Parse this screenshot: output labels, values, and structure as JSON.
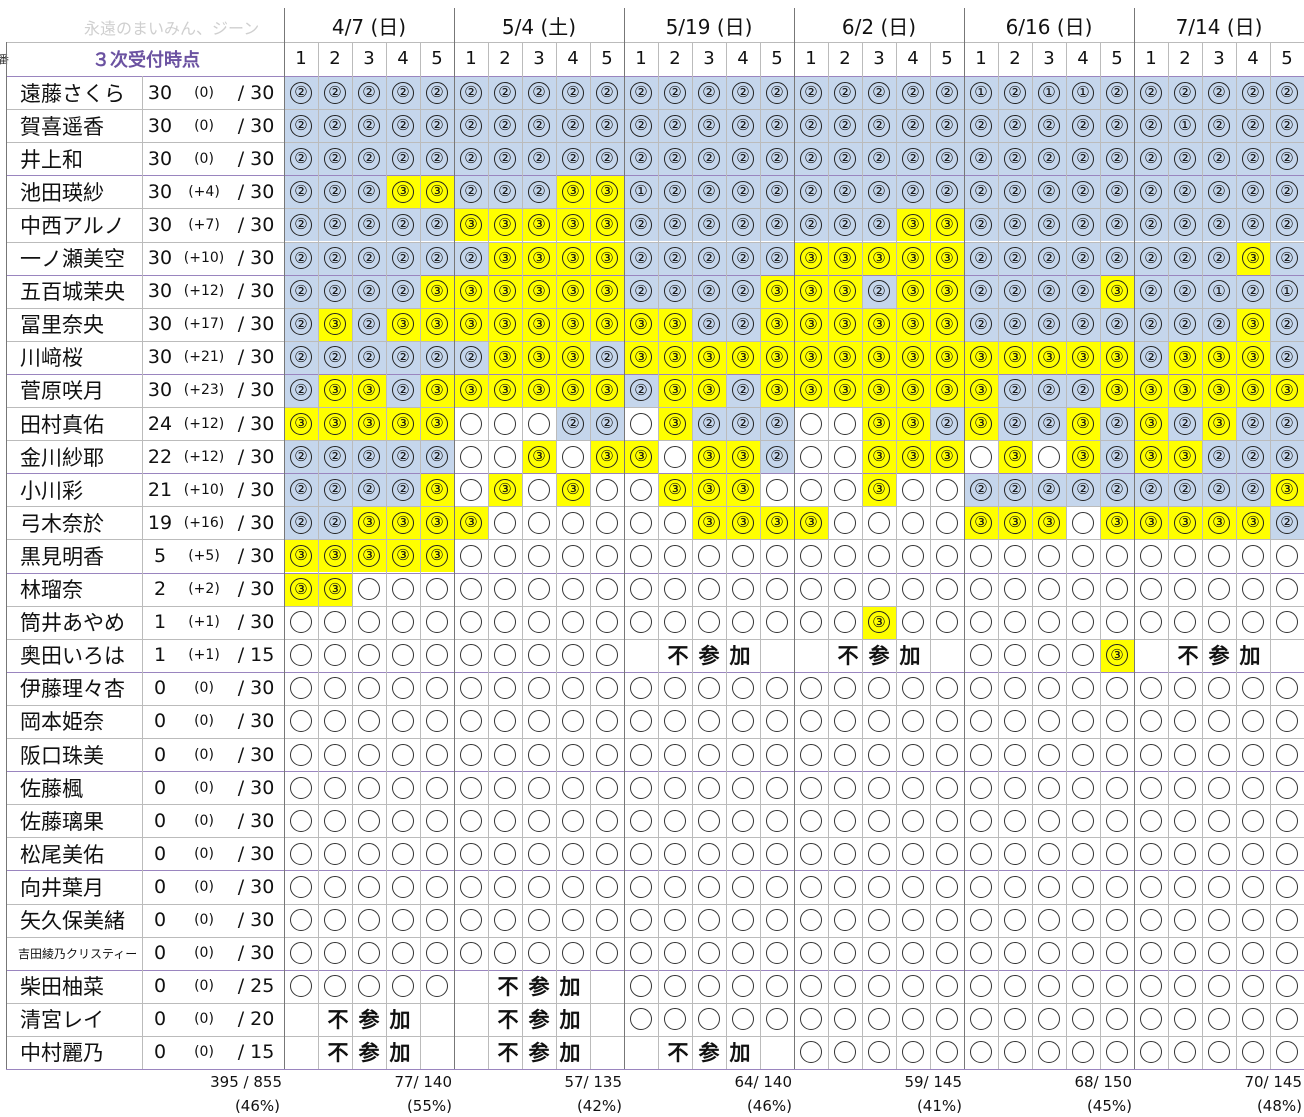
{
  "watermark": "永遠のまいみん、ジーン",
  "title": "３次受付時点",
  "edge_char": "番",
  "dates": [
    {
      "label": "4/7 (日)",
      "games": [
        "1",
        "2",
        "3",
        "4",
        "5"
      ]
    },
    {
      "label": "5/4 (土)",
      "games": [
        "1",
        "2",
        "3",
        "4",
        "5"
      ]
    },
    {
      "label": "5/19 (日)",
      "games": [
        "1",
        "2",
        "3",
        "4",
        "5"
      ]
    },
    {
      "label": "6/2 (日)",
      "games": [
        "1",
        "2",
        "3",
        "4",
        "5"
      ]
    },
    {
      "label": "6/16 (日)",
      "games": [
        "1",
        "2",
        "3",
        "4",
        "5"
      ]
    },
    {
      "label": "7/14 (日)",
      "games": [
        "1",
        "2",
        "3",
        "4",
        "5"
      ]
    }
  ],
  "absent_text": [
    "不",
    "参",
    "加"
  ],
  "legend_colors": {
    "mark_1_2": "#c5d6ec",
    "mark_3": "#ffff00",
    "header_accent": "#6b52a1"
  },
  "rows": [
    {
      "name": "遠藤さくら",
      "count": "30",
      "diff": "(0)",
      "cap": "/ 30",
      "marks": [
        "2",
        "2",
        "2",
        "2",
        "2",
        "2",
        "2",
        "2",
        "2",
        "2",
        "2",
        "2",
        "2",
        "2",
        "2",
        "2",
        "2",
        "2",
        "2",
        "2",
        "1",
        "2",
        "1",
        "1",
        "2",
        "2",
        "2",
        "2",
        "2",
        "2"
      ]
    },
    {
      "name": "賀喜遥香",
      "count": "30",
      "diff": "(0)",
      "cap": "/ 30",
      "marks": [
        "2",
        "2",
        "2",
        "2",
        "2",
        "2",
        "2",
        "2",
        "2",
        "2",
        "2",
        "2",
        "2",
        "2",
        "2",
        "2",
        "2",
        "2",
        "2",
        "2",
        "2",
        "2",
        "2",
        "2",
        "2",
        "2",
        "1",
        "2",
        "2",
        "2"
      ]
    },
    {
      "name": "井上和",
      "count": "30",
      "diff": "(0)",
      "cap": "/ 30",
      "marks": [
        "2",
        "2",
        "2",
        "2",
        "2",
        "2",
        "2",
        "2",
        "2",
        "2",
        "2",
        "2",
        "2",
        "2",
        "2",
        "2",
        "2",
        "2",
        "2",
        "2",
        "2",
        "2",
        "2",
        "2",
        "2",
        "2",
        "2",
        "2",
        "2",
        "2"
      ]
    },
    {
      "name": "池田瑛紗",
      "count": "30",
      "diff": "(+4)",
      "cap": "/ 30",
      "marks": [
        "2",
        "2",
        "2",
        "3",
        "3",
        "2",
        "2",
        "2",
        "3",
        "3",
        "1",
        "2",
        "2",
        "2",
        "2",
        "2",
        "2",
        "2",
        "2",
        "2",
        "2",
        "2",
        "2",
        "2",
        "2",
        "2",
        "2",
        "2",
        "2",
        "2"
      ]
    },
    {
      "name": "中西アルノ",
      "count": "30",
      "diff": "(+7)",
      "cap": "/ 30",
      "marks": [
        "2",
        "2",
        "2",
        "2",
        "2",
        "3",
        "3",
        "3",
        "3",
        "3",
        "2",
        "2",
        "2",
        "2",
        "2",
        "2",
        "2",
        "2",
        "3",
        "3",
        "2",
        "2",
        "2",
        "2",
        "2",
        "2",
        "2",
        "2",
        "2",
        "2"
      ]
    },
    {
      "name": "一ノ瀬美空",
      "count": "30",
      "diff": "(+10)",
      "cap": "/ 30",
      "marks": [
        "2",
        "2",
        "2",
        "2",
        "2",
        "2",
        "3",
        "3",
        "3",
        "3",
        "2",
        "2",
        "2",
        "2",
        "2",
        "3",
        "3",
        "3",
        "3",
        "3",
        "2",
        "2",
        "2",
        "2",
        "2",
        "2",
        "2",
        "2",
        "3",
        "2"
      ]
    },
    {
      "name": "五百城茉央",
      "count": "30",
      "diff": "(+12)",
      "cap": "/ 30",
      "marks": [
        "2",
        "2",
        "2",
        "2",
        "3",
        "3",
        "3",
        "3",
        "3",
        "3",
        "2",
        "2",
        "2",
        "2",
        "3",
        "3",
        "3",
        "2",
        "3",
        "3",
        "2",
        "2",
        "2",
        "2",
        "3",
        "2",
        "2",
        "1",
        "2",
        "1"
      ]
    },
    {
      "name": "冨里奈央",
      "count": "30",
      "diff": "(+17)",
      "cap": "/ 30",
      "marks": [
        "2",
        "3",
        "2",
        "3",
        "3",
        "3",
        "3",
        "3",
        "3",
        "3",
        "3",
        "3",
        "2",
        "2",
        "3",
        "3",
        "3",
        "3",
        "3",
        "3",
        "2",
        "2",
        "2",
        "2",
        "2",
        "2",
        "2",
        "2",
        "3",
        "2"
      ]
    },
    {
      "name": "川﨑桜",
      "count": "30",
      "diff": "(+21)",
      "cap": "/ 30",
      "marks": [
        "2",
        "2",
        "2",
        "2",
        "2",
        "2",
        "3",
        "3",
        "3",
        "2",
        "3",
        "3",
        "3",
        "3",
        "3",
        "3",
        "3",
        "3",
        "3",
        "3",
        "3",
        "3",
        "3",
        "3",
        "3",
        "2",
        "3",
        "3",
        "3",
        "2"
      ]
    },
    {
      "name": "菅原咲月",
      "count": "30",
      "diff": "(+23)",
      "cap": "/ 30",
      "marks": [
        "2",
        "3",
        "3",
        "2",
        "3",
        "3",
        "3",
        "3",
        "3",
        "3",
        "2",
        "3",
        "3",
        "2",
        "3",
        "3",
        "3",
        "3",
        "3",
        "3",
        "3",
        "2",
        "2",
        "2",
        "3",
        "3",
        "3",
        "3",
        "3",
        "3"
      ]
    },
    {
      "name": "田村真佑",
      "count": "24",
      "diff": "(+12)",
      "cap": "/ 30",
      "marks": [
        "3",
        "3",
        "3",
        "3",
        "3",
        "0",
        "0",
        "0",
        "2",
        "2",
        "0",
        "3",
        "2",
        "2",
        "2",
        "0",
        "0",
        "3",
        "3",
        "2",
        "3",
        "2",
        "2",
        "3",
        "2",
        "3",
        "2",
        "3",
        "2",
        "2"
      ]
    },
    {
      "name": "金川紗耶",
      "count": "22",
      "diff": "(+12)",
      "cap": "/ 30",
      "marks": [
        "2",
        "2",
        "2",
        "2",
        "2",
        "0",
        "0",
        "3",
        "0",
        "3",
        "3",
        "0",
        "3",
        "3",
        "2",
        "0",
        "0",
        "3",
        "3",
        "3",
        "0",
        "3",
        "0",
        "3",
        "2",
        "3",
        "3",
        "2",
        "2",
        "2"
      ]
    },
    {
      "name": "小川彩",
      "count": "21",
      "diff": "(+10)",
      "cap": "/ 30",
      "marks": [
        "2",
        "2",
        "2",
        "2",
        "3",
        "0",
        "3",
        "0",
        "3",
        "0",
        "0",
        "3",
        "3",
        "3",
        "0",
        "0",
        "0",
        "3",
        "0",
        "0",
        "2",
        "2",
        "2",
        "2",
        "2",
        "2",
        "2",
        "2",
        "2",
        "3"
      ]
    },
    {
      "name": "弓木奈於",
      "count": "19",
      "diff": "(+16)",
      "cap": "/ 30",
      "marks": [
        "2",
        "2",
        "3",
        "3",
        "3",
        "3",
        "0",
        "0",
        "0",
        "0",
        "0",
        "0",
        "3",
        "3",
        "3",
        "3",
        "0",
        "0",
        "0",
        "0",
        "3",
        "3",
        "3",
        "0",
        "3",
        "3",
        "3",
        "3",
        "3",
        "2"
      ]
    },
    {
      "name": "黒見明香",
      "count": "5",
      "diff": "(+5)",
      "cap": "/ 30",
      "marks": [
        "3",
        "3",
        "3",
        "3",
        "3",
        "0",
        "0",
        "0",
        "0",
        "0",
        "0",
        "0",
        "0",
        "0",
        "0",
        "0",
        "0",
        "0",
        "0",
        "0",
        "0",
        "0",
        "0",
        "0",
        "0",
        "0",
        "0",
        "0",
        "0",
        "0"
      ]
    },
    {
      "name": "林瑠奈",
      "count": "2",
      "diff": "(+2)",
      "cap": "/ 30",
      "marks": [
        "3",
        "3",
        "0",
        "0",
        "0",
        "0",
        "0",
        "0",
        "0",
        "0",
        "0",
        "0",
        "0",
        "0",
        "0",
        "0",
        "0",
        "0",
        "0",
        "0",
        "0",
        "0",
        "0",
        "0",
        "0",
        "0",
        "0",
        "0",
        "0",
        "0"
      ]
    },
    {
      "name": "筒井あやめ",
      "count": "1",
      "diff": "(+1)",
      "cap": "/ 30",
      "marks": [
        "0",
        "0",
        "0",
        "0",
        "0",
        "0",
        "0",
        "0",
        "0",
        "0",
        "0",
        "0",
        "0",
        "0",
        "0",
        "0",
        "0",
        "3",
        "0",
        "0",
        "0",
        "0",
        "0",
        "0",
        "0",
        "0",
        "0",
        "0",
        "0",
        "0"
      ]
    },
    {
      "name": "奥田いろは",
      "count": "1",
      "diff": "(+1)",
      "cap": "/ 15",
      "marks": [
        "0",
        "0",
        "0",
        "0",
        "0",
        "0",
        "0",
        "0",
        "0",
        "0",
        "X",
        "X",
        "X",
        "X",
        "X",
        "X",
        "X",
        "X",
        "X",
        "X",
        "0",
        "0",
        "0",
        "0",
        "3",
        "X",
        "X",
        "X",
        "X",
        "X"
      ]
    },
    {
      "name": "伊藤理々杏",
      "count": "0",
      "diff": "(0)",
      "cap": "/ 30",
      "marks": [
        "0",
        "0",
        "0",
        "0",
        "0",
        "0",
        "0",
        "0",
        "0",
        "0",
        "0",
        "0",
        "0",
        "0",
        "0",
        "0",
        "0",
        "0",
        "0",
        "0",
        "0",
        "0",
        "0",
        "0",
        "0",
        "0",
        "0",
        "0",
        "0",
        "0"
      ]
    },
    {
      "name": "岡本姫奈",
      "count": "0",
      "diff": "(0)",
      "cap": "/ 30",
      "marks": [
        "0",
        "0",
        "0",
        "0",
        "0",
        "0",
        "0",
        "0",
        "0",
        "0",
        "0",
        "0",
        "0",
        "0",
        "0",
        "0",
        "0",
        "0",
        "0",
        "0",
        "0",
        "0",
        "0",
        "0",
        "0",
        "0",
        "0",
        "0",
        "0",
        "0"
      ]
    },
    {
      "name": "阪口珠美",
      "count": "0",
      "diff": "(0)",
      "cap": "/ 30",
      "marks": [
        "0",
        "0",
        "0",
        "0",
        "0",
        "0",
        "0",
        "0",
        "0",
        "0",
        "0",
        "0",
        "0",
        "0",
        "0",
        "0",
        "0",
        "0",
        "0",
        "0",
        "0",
        "0",
        "0",
        "0",
        "0",
        "0",
        "0",
        "0",
        "0",
        "0"
      ]
    },
    {
      "name": "佐藤楓",
      "count": "0",
      "diff": "(0)",
      "cap": "/ 30",
      "marks": [
        "0",
        "0",
        "0",
        "0",
        "0",
        "0",
        "0",
        "0",
        "0",
        "0",
        "0",
        "0",
        "0",
        "0",
        "0",
        "0",
        "0",
        "0",
        "0",
        "0",
        "0",
        "0",
        "0",
        "0",
        "0",
        "0",
        "0",
        "0",
        "0",
        "0"
      ]
    },
    {
      "name": "佐藤璃果",
      "count": "0",
      "diff": "(0)",
      "cap": "/ 30",
      "marks": [
        "0",
        "0",
        "0",
        "0",
        "0",
        "0",
        "0",
        "0",
        "0",
        "0",
        "0",
        "0",
        "0",
        "0",
        "0",
        "0",
        "0",
        "0",
        "0",
        "0",
        "0",
        "0",
        "0",
        "0",
        "0",
        "0",
        "0",
        "0",
        "0",
        "0"
      ]
    },
    {
      "name": "松尾美佑",
      "count": "0",
      "diff": "(0)",
      "cap": "/ 30",
      "marks": [
        "0",
        "0",
        "0",
        "0",
        "0",
        "0",
        "0",
        "0",
        "0",
        "0",
        "0",
        "0",
        "0",
        "0",
        "0",
        "0",
        "0",
        "0",
        "0",
        "0",
        "0",
        "0",
        "0",
        "0",
        "0",
        "0",
        "0",
        "0",
        "0",
        "0"
      ]
    },
    {
      "name": "向井葉月",
      "count": "0",
      "diff": "(0)",
      "cap": "/ 30",
      "marks": [
        "0",
        "0",
        "0",
        "0",
        "0",
        "0",
        "0",
        "0",
        "0",
        "0",
        "0",
        "0",
        "0",
        "0",
        "0",
        "0",
        "0",
        "0",
        "0",
        "0",
        "0",
        "0",
        "0",
        "0",
        "0",
        "0",
        "0",
        "0",
        "0",
        "0"
      ]
    },
    {
      "name": "矢久保美緒",
      "count": "0",
      "diff": "(0)",
      "cap": "/ 30",
      "marks": [
        "0",
        "0",
        "0",
        "0",
        "0",
        "0",
        "0",
        "0",
        "0",
        "0",
        "0",
        "0",
        "0",
        "0",
        "0",
        "0",
        "0",
        "0",
        "0",
        "0",
        "0",
        "0",
        "0",
        "0",
        "0",
        "0",
        "0",
        "0",
        "0",
        "0"
      ]
    },
    {
      "name": "吉田綾乃クリスティー",
      "count": "0",
      "diff": "(0)",
      "cap": "/ 30",
      "small": true,
      "marks": [
        "0",
        "0",
        "0",
        "0",
        "0",
        "0",
        "0",
        "0",
        "0",
        "0",
        "0",
        "0",
        "0",
        "0",
        "0",
        "0",
        "0",
        "0",
        "0",
        "0",
        "0",
        "0",
        "0",
        "0",
        "0",
        "0",
        "0",
        "0",
        "0",
        "0"
      ]
    },
    {
      "name": "柴田柚菜",
      "count": "0",
      "diff": "(0)",
      "cap": "/ 25",
      "marks": [
        "0",
        "0",
        "0",
        "0",
        "0",
        "X",
        "X",
        "X",
        "X",
        "X",
        "0",
        "0",
        "0",
        "0",
        "0",
        "0",
        "0",
        "0",
        "0",
        "0",
        "0",
        "0",
        "0",
        "0",
        "0",
        "0",
        "0",
        "0",
        "0",
        "0"
      ]
    },
    {
      "name": "清宮レイ",
      "count": "0",
      "diff": "(0)",
      "cap": "/ 20",
      "marks": [
        "X",
        "X",
        "X",
        "X",
        "X",
        "X",
        "X",
        "X",
        "X",
        "X",
        "0",
        "0",
        "0",
        "0",
        "0",
        "0",
        "0",
        "0",
        "0",
        "0",
        "0",
        "0",
        "0",
        "0",
        "0",
        "0",
        "0",
        "0",
        "0",
        "0"
      ]
    },
    {
      "name": "中村麗乃",
      "count": "0",
      "diff": "(0)",
      "cap": "/ 15",
      "marks": [
        "X",
        "X",
        "X",
        "X",
        "X",
        "X",
        "X",
        "X",
        "X",
        "X",
        "X",
        "X",
        "X",
        "X",
        "X",
        "0",
        "0",
        "0",
        "0",
        "0",
        "0",
        "0",
        "0",
        "0",
        "0",
        "0",
        "0",
        "0",
        "0",
        "0"
      ]
    }
  ],
  "footer": {
    "total": "395 / 855",
    "total_pct": "(46%)",
    "per_date": [
      {
        "value": "77/ 140",
        "pct": "(55%)"
      },
      {
        "value": "57/ 135",
        "pct": "(42%)"
      },
      {
        "value": "64/ 140",
        "pct": "(46%)"
      },
      {
        "value": "59/ 145",
        "pct": "(41%)"
      },
      {
        "value": "68/ 150",
        "pct": "(45%)"
      },
      {
        "value": "70/ 145",
        "pct": "(48%)"
      }
    ]
  }
}
